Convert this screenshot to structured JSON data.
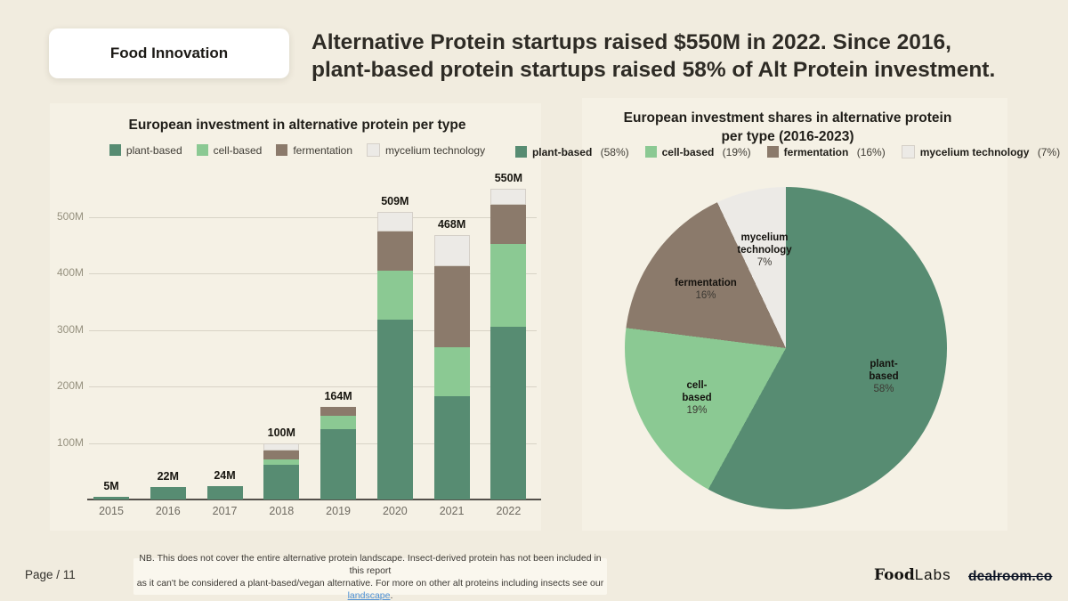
{
  "header": {
    "badge": "Food Innovation",
    "title_line1": "Alternative Protein startups raised $550M in 2022. Since 2016,",
    "title_line2": "plant-based protein startups raised 58% of Alt Protein investment."
  },
  "colors": {
    "page_background": "#f1ecdf",
    "plant_based": "#578c72",
    "cell_based": "#8bc993",
    "fermentation": "#8b7a6b",
    "mycelium": "#eceae6",
    "link": "#4b8fd4"
  },
  "chart_data": [
    {
      "type": "stacked_bar",
      "title": "European investment in alternative protein per type",
      "categories": [
        "2015",
        "2016",
        "2017",
        "2018",
        "2019",
        "2020",
        "2021",
        "2022"
      ],
      "series": [
        {
          "name": "plant-based",
          "color": "#578c72",
          "values": [
            5,
            22,
            24,
            62,
            125,
            318,
            182,
            306
          ]
        },
        {
          "name": "cell-based",
          "color": "#8bc993",
          "values": [
            0,
            0,
            0,
            9,
            23,
            87,
            88,
            146
          ]
        },
        {
          "name": "fermentation",
          "color": "#8b7a6b",
          "values": [
            0,
            0,
            0,
            15,
            16,
            69,
            143,
            70
          ]
        },
        {
          "name": "mycelium technology",
          "color": "#eceae6",
          "border": "#d5d0c8",
          "values": [
            0,
            0,
            0,
            14,
            0,
            35,
            55,
            28
          ]
        }
      ],
      "totals_labels": [
        "5M",
        "22M",
        "24M",
        "100M",
        "164M",
        "509M",
        "468M",
        "550M"
      ],
      "y_ticks": [
        "100M",
        "200M",
        "300M",
        "400M",
        "500M"
      ],
      "ylim": [
        0,
        550
      ],
      "unit": "M",
      "grid": true,
      "legend_position": "top"
    },
    {
      "type": "pie",
      "title_line1": "European investment shares in alternative protein",
      "title_line2": "per type (2016-2023)",
      "slices": [
        {
          "name": "plant-based",
          "pct": 58,
          "color": "#578c72",
          "label": {
            "name_l1": "plant-",
            "name_l2": "based",
            "pct_label": "58%"
          }
        },
        {
          "name": "cell-based",
          "pct": 19,
          "color": "#8bc993",
          "label": {
            "name_l1": "cell-",
            "name_l2": "based",
            "pct_label": "19%"
          }
        },
        {
          "name": "fermentation",
          "pct": 16,
          "color": "#8b7a6b",
          "label": {
            "name_l1": "fermentation",
            "pct_label": "16%"
          }
        },
        {
          "name": "mycelium technology",
          "pct": 7,
          "color": "#eceae6",
          "border": "#d5d0c8",
          "label": {
            "name_l1": "mycelium",
            "name_l2": "technology",
            "pct_label": "7%"
          }
        }
      ],
      "legend_position": "top",
      "start_angle_deg": 0,
      "direction": "clockwise"
    }
  ],
  "footer": {
    "page_label": "Page / 11",
    "nb_line1": "NB. This does not cover the entire alternative protein landscape. Insect-derived protein has not been included in this report",
    "nb_line2_prefix": "as it can't be considered a plant-based/vegan alternative. For more on other alt proteins including insects see our ",
    "nb_link": "landscape",
    "nb_line2_suffix": ".",
    "logo_food": "Food",
    "logo_labs": "Labs",
    "logo_dealroom": "dealroom.co"
  }
}
